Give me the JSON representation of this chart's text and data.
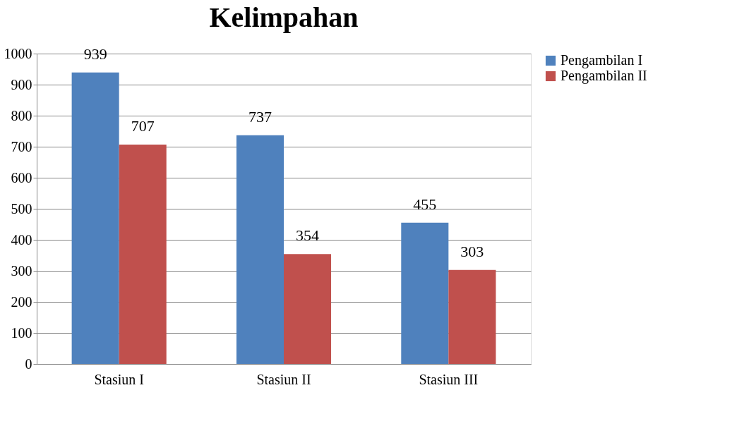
{
  "chart_data": {
    "type": "bar",
    "title": "Kelimpahan",
    "categories": [
      "Stasiun I",
      "Stasiun II",
      "Stasiun III"
    ],
    "series": [
      {
        "name": "Pengambilan I",
        "color": "#4f81bd",
        "values": [
          939,
          737,
          455
        ]
      },
      {
        "name": "Pengambilan II",
        "color": "#c0504d",
        "values": [
          707,
          354,
          303
        ]
      }
    ],
    "ylim": [
      0,
      1000
    ],
    "yticks": [
      0,
      100,
      200,
      300,
      400,
      500,
      600,
      700,
      800,
      900,
      1000
    ],
    "grid": "y",
    "legend": "right",
    "data_labels": true
  }
}
